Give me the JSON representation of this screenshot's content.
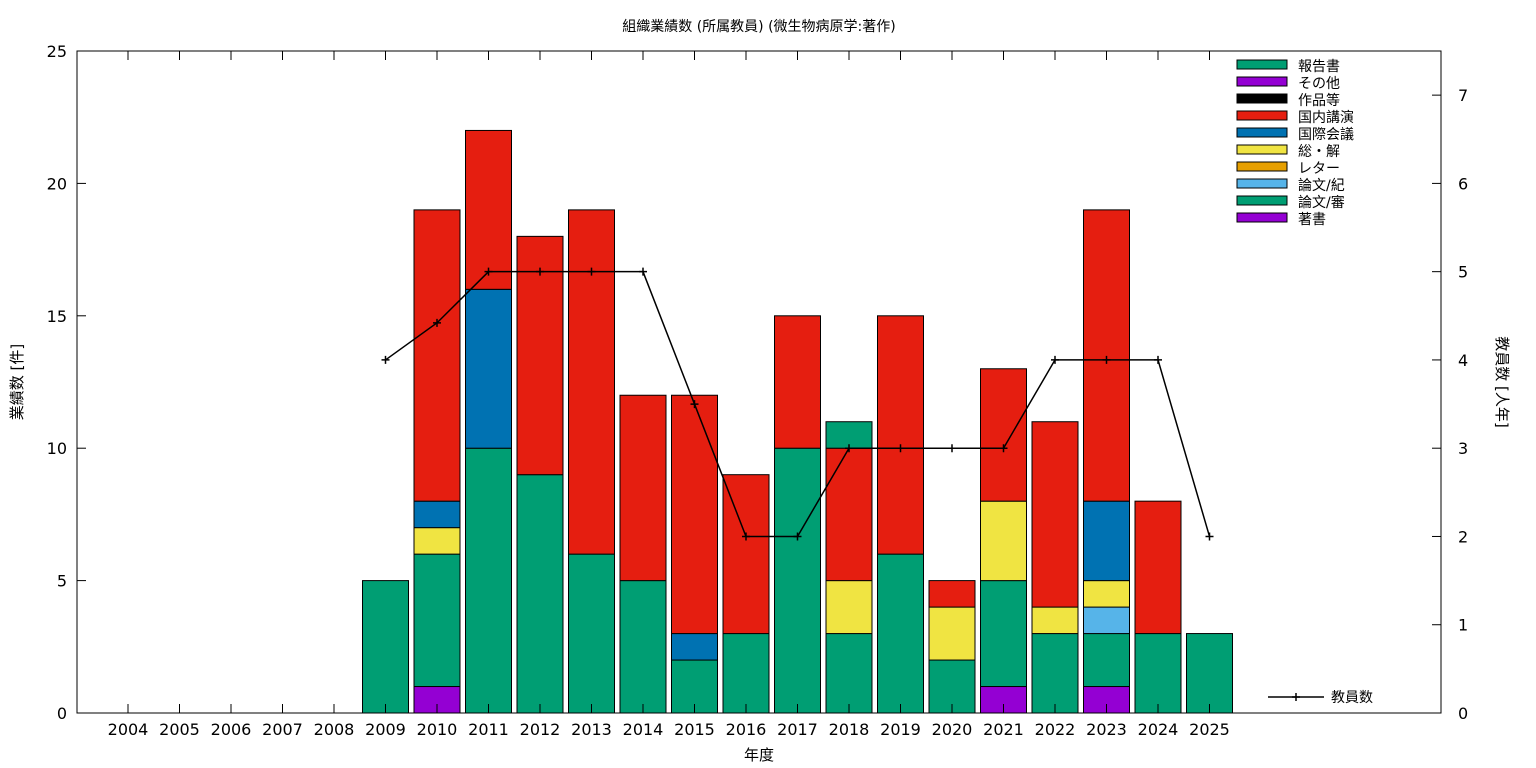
{
  "chart_data": {
    "type": "bar",
    "stacked": true,
    "title": "組織業績数 (所属教員) (微生物病原学:著作)",
    "xlabel": "年度",
    "ylabel": "業績数 [件]",
    "y2label": "教員数 [人年]",
    "ylim": [
      0,
      25
    ],
    "y2lim": [
      0,
      7.5
    ],
    "yticks": [
      0,
      5,
      10,
      15,
      20,
      25
    ],
    "y2ticks": [
      0,
      1,
      2,
      3,
      4,
      5,
      6,
      7
    ],
    "grid": false,
    "legend_position": "top-right",
    "categories": [
      "2004",
      "2005",
      "2006",
      "2007",
      "2008",
      "2009",
      "2010",
      "2011",
      "2012",
      "2013",
      "2014",
      "2015",
      "2016",
      "2017",
      "2018",
      "2019",
      "2020",
      "2021",
      "2022",
      "2023",
      "2024",
      "2025"
    ],
    "series": [
      {
        "name": "著書",
        "color": "#9400d3",
        "values": [
          0,
          0,
          0,
          0,
          0,
          0,
          1,
          0,
          0,
          0,
          0,
          0,
          0,
          0,
          0,
          0,
          0,
          1,
          0,
          1,
          0,
          0
        ]
      },
      {
        "name": "論文/審",
        "color": "#009e73",
        "values": [
          0,
          0,
          0,
          0,
          0,
          5,
          5,
          10,
          9,
          6,
          5,
          2,
          3,
          10,
          3,
          6,
          2,
          4,
          3,
          2,
          3,
          3
        ]
      },
      {
        "name": "論文/紀",
        "color": "#56b4e9",
        "values": [
          0,
          0,
          0,
          0,
          0,
          0,
          0,
          0,
          0,
          0,
          0,
          0,
          0,
          0,
          0,
          0,
          0,
          0,
          0,
          1,
          0,
          0
        ]
      },
      {
        "name": "レター",
        "color": "#e69f00",
        "values": [
          0,
          0,
          0,
          0,
          0,
          0,
          0,
          0,
          0,
          0,
          0,
          0,
          0,
          0,
          0,
          0,
          0,
          0,
          0,
          0,
          0,
          0
        ]
      },
      {
        "name": "総・解",
        "color": "#f0e442",
        "values": [
          0,
          0,
          0,
          0,
          0,
          0,
          1,
          0,
          0,
          0,
          0,
          0,
          0,
          0,
          2,
          0,
          2,
          3,
          1,
          1,
          0,
          0
        ]
      },
      {
        "name": "国際会議",
        "color": "#0072b2",
        "values": [
          0,
          0,
          0,
          0,
          0,
          0,
          1,
          6,
          0,
          0,
          0,
          1,
          0,
          0,
          0,
          0,
          0,
          0,
          0,
          3,
          0,
          0
        ]
      },
      {
        "name": "国内講演",
        "color": "#e51e10",
        "values": [
          0,
          0,
          0,
          0,
          0,
          0,
          11,
          6,
          9,
          13,
          7,
          9,
          6,
          5,
          5,
          9,
          1,
          5,
          7,
          11,
          5,
          0
        ]
      },
      {
        "name": "作品等",
        "color": "#000000",
        "values": [
          0,
          0,
          0,
          0,
          0,
          0,
          0,
          0,
          0,
          0,
          0,
          0,
          0,
          0,
          0,
          0,
          0,
          0,
          0,
          0,
          0,
          0
        ]
      },
      {
        "name": "その他",
        "color": "#9400d3",
        "values": [
          0,
          0,
          0,
          0,
          0,
          0,
          0,
          0,
          0,
          0,
          0,
          0,
          0,
          0,
          0,
          0,
          0,
          0,
          0,
          0,
          0,
          0
        ]
      },
      {
        "name": "報告書",
        "color": "#009e73",
        "values": [
          0,
          0,
          0,
          0,
          0,
          0,
          0,
          0,
          0,
          0,
          0,
          0,
          0,
          0,
          1,
          0,
          0,
          0,
          0,
          0,
          0,
          0
        ]
      }
    ],
    "line_series": {
      "name": "教員数",
      "color": "#000000",
      "axis": "y2",
      "x": [
        "2009",
        "2010",
        "2011",
        "2012",
        "2013",
        "2014",
        "2015",
        "2016",
        "2017",
        "2018",
        "2019",
        "2020",
        "2021",
        "2022",
        "2023",
        "2024",
        "2025"
      ],
      "values": [
        4,
        4.42,
        5,
        5,
        5,
        5,
        3.5,
        2,
        2,
        3,
        3,
        3,
        3,
        4,
        4,
        4,
        2
      ]
    }
  }
}
